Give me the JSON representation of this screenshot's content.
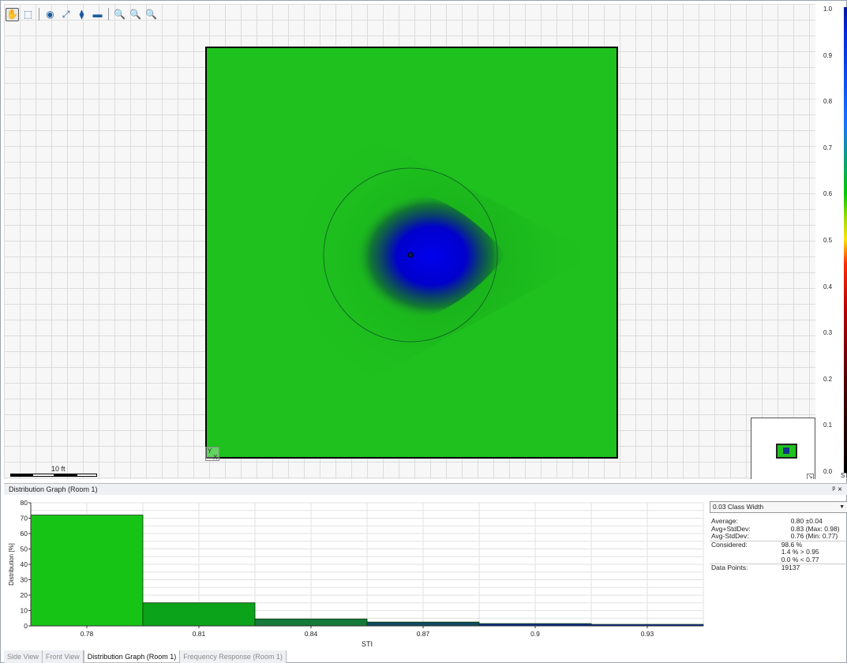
{
  "toolbar": {
    "tools": [
      {
        "name": "pan-hand-tool",
        "glyph": "✋",
        "active": true
      },
      {
        "name": "select-rectangle-tool",
        "glyph": "⬚"
      },
      {
        "name": "source-tool",
        "glyph": "◉"
      },
      {
        "name": "measure-tool",
        "glyph": "⤢"
      },
      {
        "name": "microphone-tool",
        "glyph": "⧫"
      },
      {
        "name": "surface-tool",
        "glyph": "▬"
      },
      {
        "name": "zoom-in-tool",
        "glyph": "🔍"
      },
      {
        "name": "zoom-out-tool",
        "glyph": "🔍"
      },
      {
        "name": "zoom-fit-tool",
        "glyph": "🔍"
      }
    ]
  },
  "map": {
    "scale_label": "10 ft",
    "axis_y": "Y",
    "axis_x": "X"
  },
  "color_scale": {
    "ticks": [
      "1.0",
      "0.9",
      "0.8",
      "0.7",
      "0.6",
      "0.5",
      "0.4",
      "0.3",
      "0.2",
      "0.1",
      "0.0"
    ],
    "unit": "ST"
  },
  "panel": {
    "title": "Distribution Graph (Room 1)",
    "pin_icon": "ᵖ",
    "close_icon": "×"
  },
  "stats": {
    "class_width": "0.03 Class Width",
    "rows": [
      {
        "label": "Average:",
        "value": "0.80 ±0.04"
      },
      {
        "label": "Avg+StdDev:",
        "value": "0.83 (Max: 0.98)"
      },
      {
        "label": "Avg-StdDev:",
        "value": "0.76 (Min: 0.77)"
      },
      {
        "label": "Considered:",
        "value": "98.6 %"
      },
      {
        "label": "",
        "value": "1.4 % > 0.95"
      },
      {
        "label": "",
        "value": "0.0 % < 0.77"
      },
      {
        "label": "Data Points:",
        "value": "19137"
      }
    ]
  },
  "chart_data": {
    "type": "bar",
    "categories": [
      "0.78",
      "0.81",
      "0.84",
      "0.87",
      "0.9",
      "0.93"
    ],
    "values": [
      72,
      15,
      4.5,
      2.5,
      1.5,
      1
    ],
    "bar_colors": [
      "#16c416",
      "#0aa31a",
      "#137a3a",
      "#104a60",
      "#0e2e8c",
      "#0a20b0"
    ],
    "xlabel": "STI",
    "ylabel": "Distribution [%]",
    "ylim": [
      0,
      80
    ],
    "yticks": [
      0,
      10,
      20,
      30,
      40,
      50,
      60,
      70,
      80
    ],
    "grid": true
  },
  "tabs": [
    {
      "label": "Side View",
      "active": false
    },
    {
      "label": "Front View",
      "active": false
    },
    {
      "label": "Distribution Graph (Room 1)",
      "active": true
    },
    {
      "label": "Frequency Response (Room 1)",
      "active": false
    }
  ]
}
